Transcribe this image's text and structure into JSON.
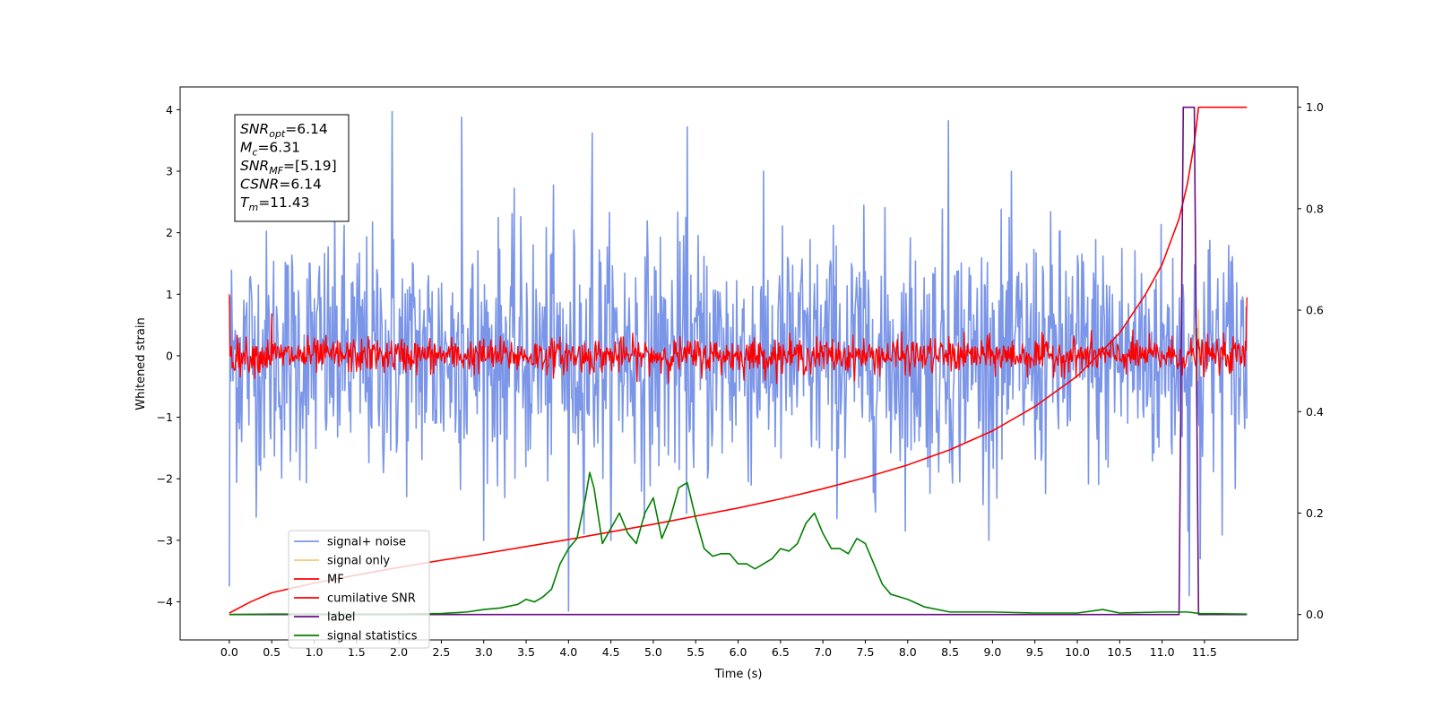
{
  "chart_data": {
    "type": "line",
    "xlabel": "Time (s)",
    "ylabel": "Whitened strain",
    "xlim": [
      -0.58,
      12.6
    ],
    "ylim_left": [
      -4.62,
      4.37
    ],
    "ylim_right": [
      -0.05,
      1.04
    ],
    "x_ticks": [
      "0.0",
      "0.5",
      "1.0",
      "1.5",
      "2.0",
      "2.5",
      "3.0",
      "3.5",
      "4.0",
      "4.5",
      "5.0",
      "5.5",
      "6.0",
      "6.5",
      "7.0",
      "7.5",
      "8.0",
      "8.5",
      "9.0",
      "9.5",
      "10.0",
      "10.5",
      "11.0",
      "11.5"
    ],
    "y_ticks_left": [
      "4",
      "3",
      "2",
      "1",
      "0",
      "−1",
      "−2",
      "−3",
      "−4"
    ],
    "y_ticks_right": [
      "1.0",
      "0.8",
      "0.6",
      "0.4",
      "0.2",
      "0.0"
    ],
    "legend_placement": "lower-left",
    "info_box": [
      {
        "base": "SNR",
        "sub": "opt",
        "rest": "=6.14"
      },
      {
        "base": "M",
        "sub": "c",
        "rest": "=6.31"
      },
      {
        "base": "SNR",
        "sub": "MF",
        "rest": "=[5.19]"
      },
      {
        "base": "CSNR",
        "sub": "",
        "rest": "=6.14"
      },
      {
        "base": "T",
        "sub": "m",
        "rest": "=11.43"
      }
    ],
    "series": [
      {
        "name": "signal+ noise",
        "color": "#7b96e8",
        "axis": "left",
        "style": "whitened noise, about ±2.3 typical, peaks near ±4",
        "duration": 12.0,
        "peak_spikes": [
          [
            0.0,
            -3.75
          ],
          [
            1.92,
            3.97
          ],
          [
            2.74,
            3.88
          ],
          [
            4.0,
            -4.15
          ],
          [
            4.28,
            3.62
          ],
          [
            5.4,
            3.72
          ],
          [
            8.48,
            3.82
          ],
          [
            11.32,
            -3.9
          ],
          [
            11.45,
            -3.3
          ]
        ]
      },
      {
        "name": "signal only",
        "color": "#f5c97a",
        "axis": "left",
        "points": [
          [
            11.35,
            -0.1
          ],
          [
            11.4,
            0.5
          ],
          [
            11.42,
            -0.4
          ],
          [
            11.43,
            0.75
          ],
          [
            11.44,
            0.0
          ]
        ]
      },
      {
        "name": "MF",
        "color": "#ff0000",
        "axis": "left",
        "style": "noise band about ±0.3, peaks near ±0.6",
        "duration": 12.0,
        "peak_spikes": [
          [
            0.0,
            1.0
          ],
          [
            0.5,
            0.68
          ],
          [
            12.0,
            0.95
          ]
        ]
      },
      {
        "name": "cumilative SNR",
        "color": "#ff0000",
        "axis": "right",
        "x": [
          0.0,
          0.25,
          0.5,
          1.0,
          1.5,
          2.0,
          2.5,
          3.0,
          3.5,
          4.0,
          4.5,
          5.0,
          5.5,
          6.0,
          6.5,
          7.0,
          7.5,
          8.0,
          8.5,
          9.0,
          9.5,
          10.0,
          10.5,
          10.8,
          11.0,
          11.2,
          11.3,
          11.38,
          11.43,
          11.5,
          12.0
        ],
        "y": [
          0.003,
          0.025,
          0.043,
          0.062,
          0.078,
          0.093,
          0.107,
          0.12,
          0.134,
          0.148,
          0.163,
          0.178,
          0.194,
          0.21,
          0.228,
          0.248,
          0.27,
          0.295,
          0.325,
          0.362,
          0.41,
          0.47,
          0.555,
          0.63,
          0.69,
          0.78,
          0.85,
          0.93,
          1.0,
          1.0,
          1.0
        ]
      },
      {
        "name": "label",
        "color": "#6a0d83",
        "axis": "right",
        "x": [
          0.0,
          11.2,
          11.25,
          11.38,
          11.43,
          12.0
        ],
        "y": [
          0.0,
          0.0,
          1.0,
          1.0,
          0.0,
          0.0
        ]
      },
      {
        "name": "signal statistics",
        "color": "#008000",
        "axis": "right",
        "x": [
          0.0,
          0.5,
          1.0,
          1.5,
          2.0,
          2.5,
          2.8,
          3.0,
          3.2,
          3.4,
          3.5,
          3.6,
          3.7,
          3.8,
          3.9,
          4.0,
          4.1,
          4.2,
          4.25,
          4.3,
          4.4,
          4.5,
          4.6,
          4.7,
          4.8,
          4.9,
          5.0,
          5.1,
          5.2,
          5.3,
          5.4,
          5.5,
          5.6,
          5.7,
          5.8,
          5.9,
          6.0,
          6.1,
          6.2,
          6.3,
          6.4,
          6.5,
          6.6,
          6.7,
          6.8,
          6.9,
          7.0,
          7.1,
          7.2,
          7.3,
          7.4,
          7.5,
          7.6,
          7.7,
          7.8,
          7.9,
          8.0,
          8.2,
          8.5,
          9.0,
          9.5,
          10.0,
          10.3,
          10.5,
          11.0,
          11.3,
          11.45,
          12.0
        ],
        "y": [
          0.0,
          0.001,
          0.001,
          0.001,
          0.001,
          0.002,
          0.005,
          0.01,
          0.013,
          0.02,
          0.03,
          0.025,
          0.035,
          0.05,
          0.1,
          0.13,
          0.15,
          0.23,
          0.28,
          0.25,
          0.14,
          0.17,
          0.2,
          0.16,
          0.14,
          0.2,
          0.23,
          0.15,
          0.19,
          0.25,
          0.26,
          0.19,
          0.13,
          0.115,
          0.12,
          0.12,
          0.1,
          0.1,
          0.09,
          0.1,
          0.11,
          0.13,
          0.125,
          0.14,
          0.18,
          0.2,
          0.16,
          0.13,
          0.13,
          0.12,
          0.15,
          0.14,
          0.1,
          0.06,
          0.04,
          0.035,
          0.03,
          0.015,
          0.005,
          0.005,
          0.003,
          0.003,
          0.01,
          0.003,
          0.005,
          0.005,
          0.002,
          0.001
        ]
      }
    ]
  }
}
